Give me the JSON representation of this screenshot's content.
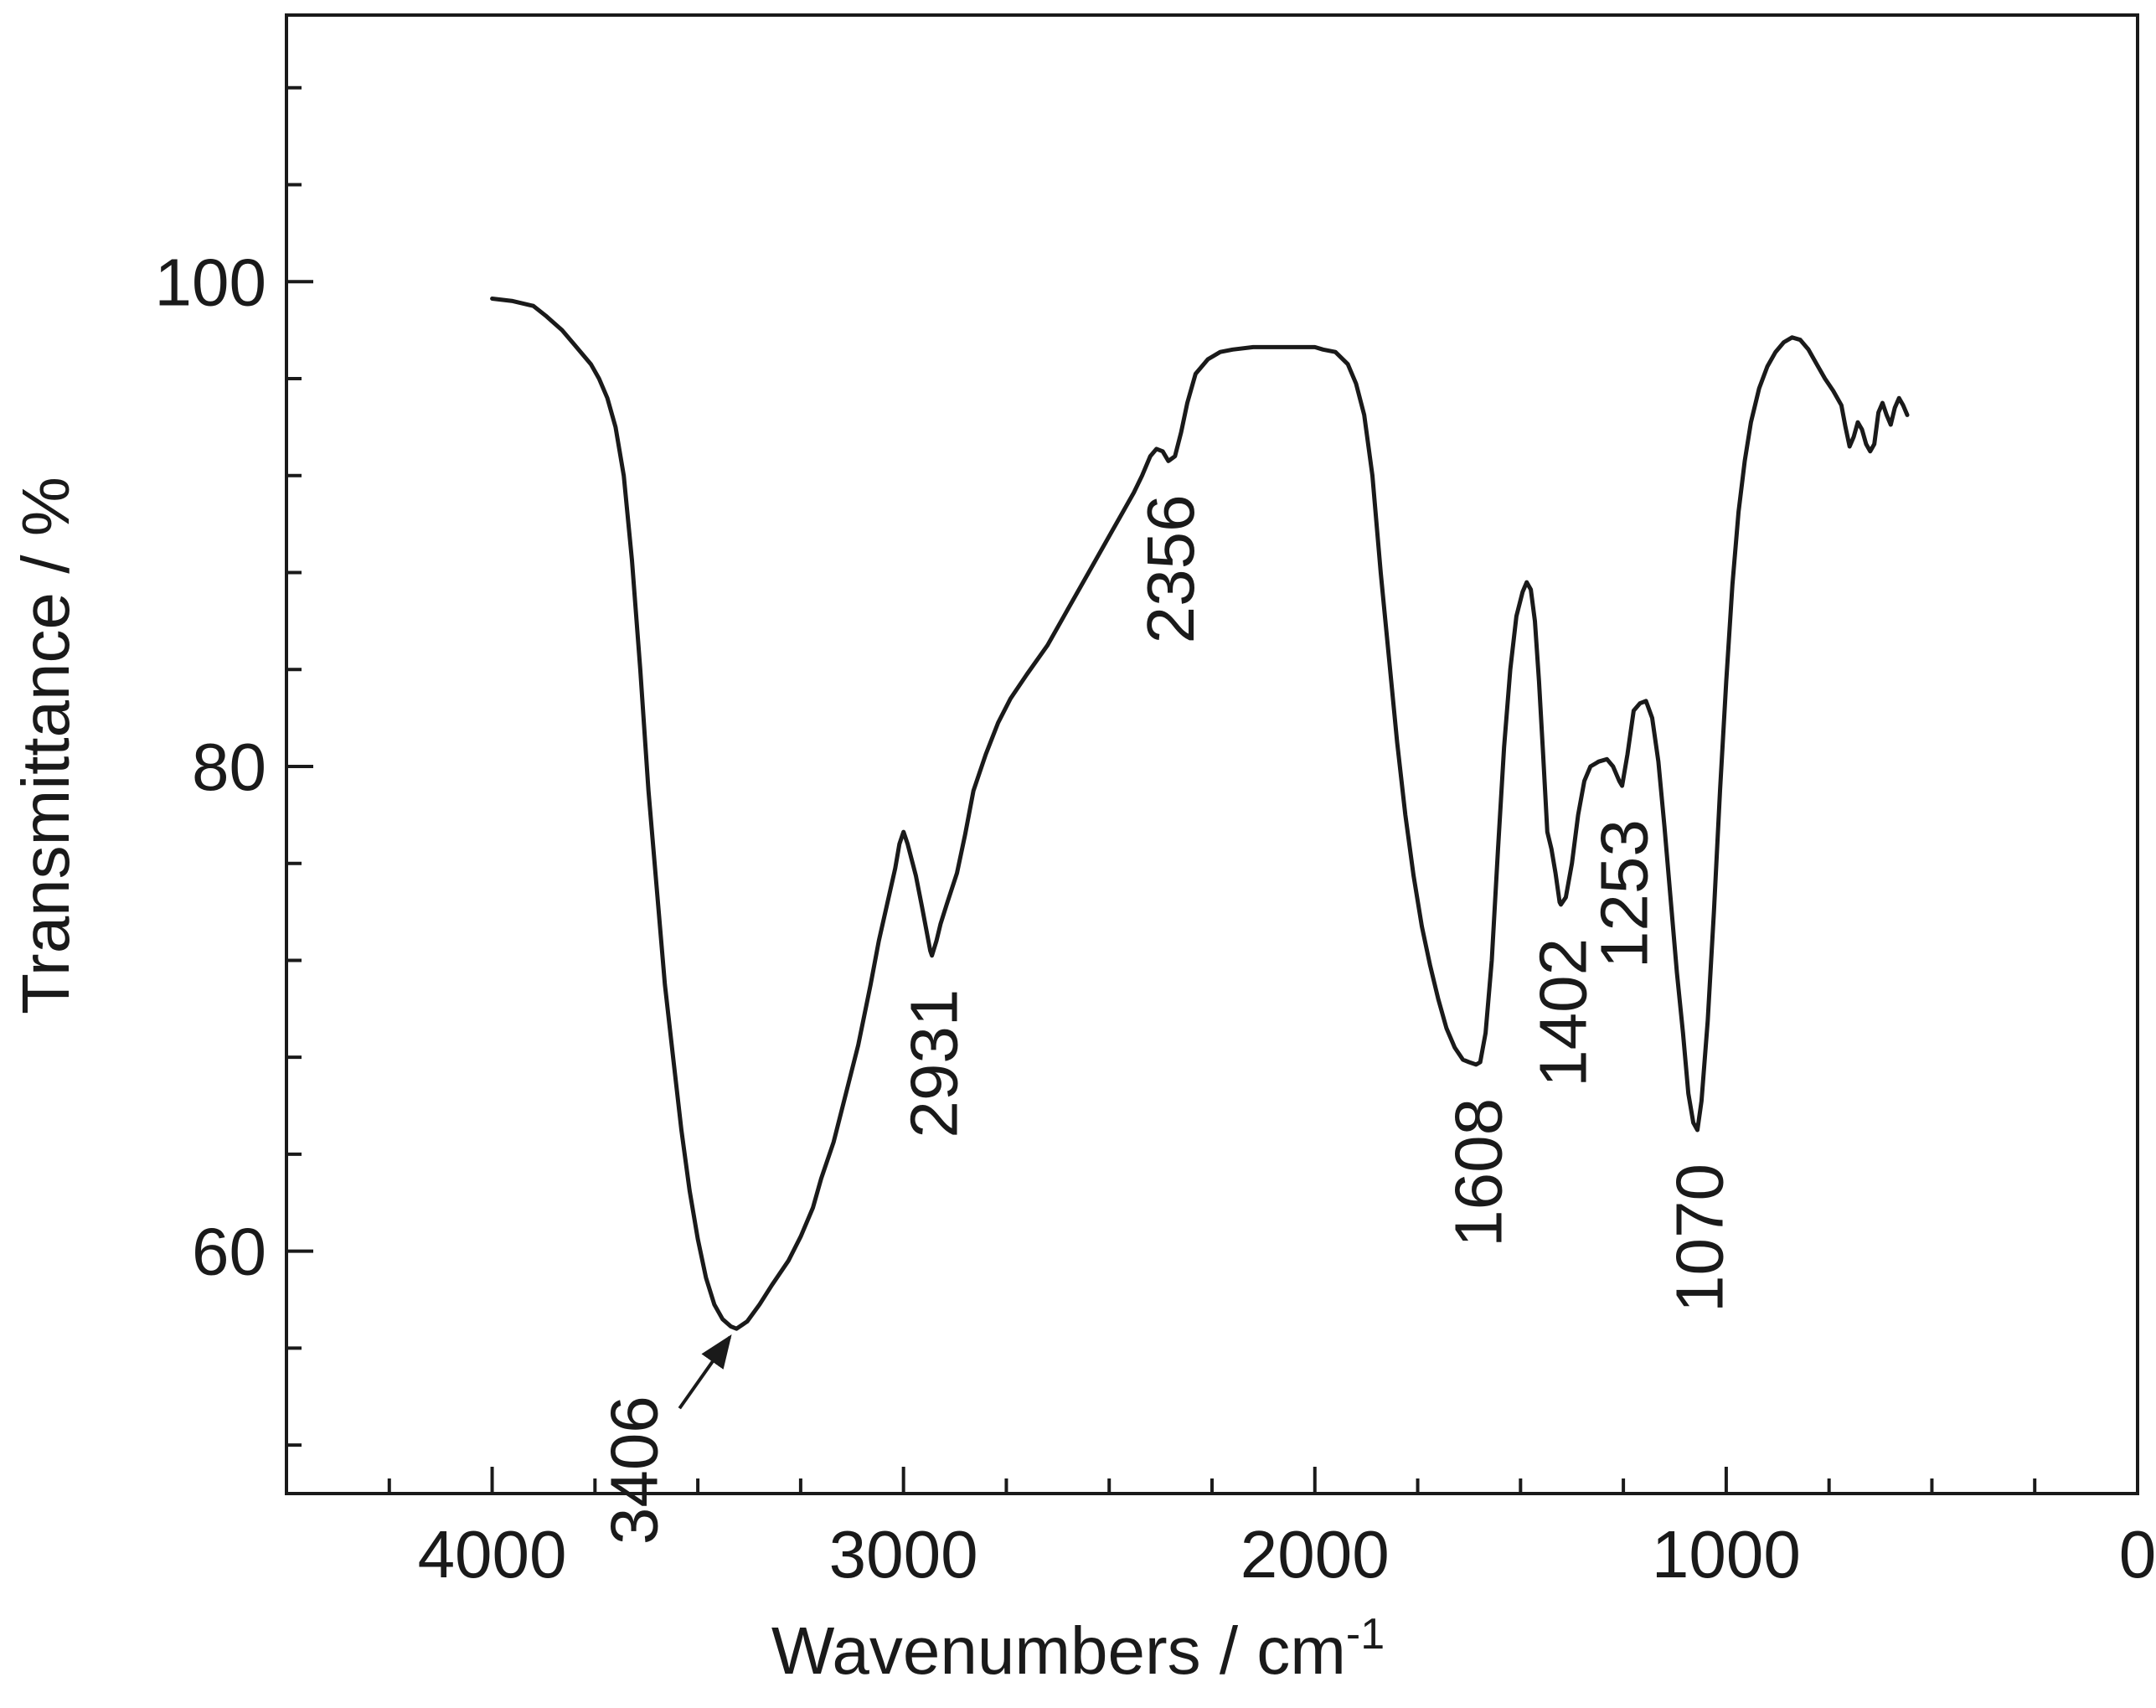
{
  "chart_data": {
    "type": "line",
    "title": "",
    "xlabel": "Wavenumbers / cm",
    "xlabel_sup": "-1",
    "ylabel": "Transmittance / %",
    "xlim": [
      4500,
      0
    ],
    "ylim": [
      50,
      111
    ],
    "x_reversed": true,
    "grid": false,
    "legend": "none",
    "line_color": "#1a1a1a",
    "x_ticks": [
      {
        "value": 4000,
        "label": "4000"
      },
      {
        "value": 3000,
        "label": "3000"
      },
      {
        "value": 2000,
        "label": "2000"
      },
      {
        "value": 1000,
        "label": "1000"
      },
      {
        "value": 0,
        "label": "0"
      }
    ],
    "y_ticks": [
      {
        "value": 60,
        "label": "60"
      },
      {
        "value": 80,
        "label": "80"
      },
      {
        "value": 100,
        "label": "100"
      }
    ],
    "series": [
      {
        "points": [
          [
            4000,
            99.3
          ],
          [
            3950,
            99.2
          ],
          [
            3900,
            99.0
          ],
          [
            3870,
            98.6
          ],
          [
            3830,
            98.0
          ],
          [
            3800,
            97.4
          ],
          [
            3780,
            97.0
          ],
          [
            3760,
            96.6
          ],
          [
            3740,
            96.0
          ],
          [
            3720,
            95.2
          ],
          [
            3700,
            94.0
          ],
          [
            3680,
            92.0
          ],
          [
            3660,
            88.5
          ],
          [
            3640,
            84.0
          ],
          [
            3620,
            79.0
          ],
          [
            3600,
            75.0
          ],
          [
            3580,
            71.0
          ],
          [
            3560,
            68.0
          ],
          [
            3540,
            65.0
          ],
          [
            3520,
            62.5
          ],
          [
            3500,
            60.5
          ],
          [
            3480,
            58.9
          ],
          [
            3460,
            57.8
          ],
          [
            3440,
            57.2
          ],
          [
            3420,
            56.9
          ],
          [
            3406,
            56.8
          ],
          [
            3380,
            57.1
          ],
          [
            3350,
            57.8
          ],
          [
            3320,
            58.6
          ],
          [
            3280,
            59.6
          ],
          [
            3250,
            60.6
          ],
          [
            3220,
            61.8
          ],
          [
            3200,
            63.0
          ],
          [
            3170,
            64.5
          ],
          [
            3140,
            66.5
          ],
          [
            3110,
            68.5
          ],
          [
            3080,
            71.0
          ],
          [
            3060,
            72.8
          ],
          [
            3040,
            74.3
          ],
          [
            3020,
            75.8
          ],
          [
            3010,
            76.8
          ],
          [
            3000,
            77.3
          ],
          [
            2990,
            76.8
          ],
          [
            2970,
            75.5
          ],
          [
            2955,
            74.2
          ],
          [
            2945,
            73.3
          ],
          [
            2935,
            72.4
          ],
          [
            2931,
            72.2
          ],
          [
            2920,
            72.8
          ],
          [
            2910,
            73.5
          ],
          [
            2895,
            74.3
          ],
          [
            2870,
            75.6
          ],
          [
            2850,
            77.2
          ],
          [
            2830,
            79.0
          ],
          [
            2800,
            80.5
          ],
          [
            2770,
            81.8
          ],
          [
            2740,
            82.8
          ],
          [
            2700,
            83.8
          ],
          [
            2650,
            85.0
          ],
          [
            2600,
            86.5
          ],
          [
            2550,
            88.0
          ],
          [
            2500,
            89.5
          ],
          [
            2470,
            90.4
          ],
          [
            2440,
            91.3
          ],
          [
            2420,
            92.0
          ],
          [
            2400,
            92.8
          ],
          [
            2385,
            93.1
          ],
          [
            2370,
            93.0
          ],
          [
            2356,
            92.6
          ],
          [
            2340,
            92.8
          ],
          [
            2325,
            93.8
          ],
          [
            2310,
            95.0
          ],
          [
            2290,
            96.2
          ],
          [
            2260,
            96.8
          ],
          [
            2230,
            97.1
          ],
          [
            2200,
            97.2
          ],
          [
            2150,
            97.3
          ],
          [
            2100,
            97.3
          ],
          [
            2050,
            97.3
          ],
          [
            2000,
            97.3
          ],
          [
            1980,
            97.2
          ],
          [
            1950,
            97.1
          ],
          [
            1920,
            96.6
          ],
          [
            1900,
            95.8
          ],
          [
            1880,
            94.5
          ],
          [
            1860,
            92.0
          ],
          [
            1840,
            88.0
          ],
          [
            1820,
            84.5
          ],
          [
            1800,
            81.0
          ],
          [
            1780,
            78.0
          ],
          [
            1760,
            75.5
          ],
          [
            1740,
            73.4
          ],
          [
            1720,
            71.8
          ],
          [
            1700,
            70.4
          ],
          [
            1680,
            69.2
          ],
          [
            1660,
            68.4
          ],
          [
            1640,
            67.9
          ],
          [
            1625,
            67.8
          ],
          [
            1608,
            67.7
          ],
          [
            1598,
            67.8
          ],
          [
            1585,
            69.0
          ],
          [
            1570,
            72.0
          ],
          [
            1555,
            76.5
          ],
          [
            1540,
            80.8
          ],
          [
            1525,
            84.0
          ],
          [
            1510,
            86.2
          ],
          [
            1495,
            87.2
          ],
          [
            1485,
            87.6
          ],
          [
            1475,
            87.3
          ],
          [
            1465,
            86.0
          ],
          [
            1455,
            83.5
          ],
          [
            1445,
            80.5
          ],
          [
            1435,
            77.3
          ],
          [
            1425,
            76.6
          ],
          [
            1415,
            75.6
          ],
          [
            1405,
            74.4
          ],
          [
            1402,
            74.3
          ],
          [
            1390,
            74.6
          ],
          [
            1375,
            76.0
          ],
          [
            1360,
            78.0
          ],
          [
            1345,
            79.4
          ],
          [
            1330,
            80.0
          ],
          [
            1310,
            80.2
          ],
          [
            1290,
            80.3
          ],
          [
            1275,
            80.0
          ],
          [
            1260,
            79.4
          ],
          [
            1253,
            79.2
          ],
          [
            1240,
            80.5
          ],
          [
            1225,
            82.3
          ],
          [
            1210,
            82.6
          ],
          [
            1195,
            82.7
          ],
          [
            1180,
            82.0
          ],
          [
            1165,
            80.2
          ],
          [
            1150,
            77.5
          ],
          [
            1135,
            74.5
          ],
          [
            1120,
            71.5
          ],
          [
            1105,
            69.0
          ],
          [
            1092,
            66.5
          ],
          [
            1080,
            65.3
          ],
          [
            1070,
            65.0
          ],
          [
            1060,
            66.2
          ],
          [
            1045,
            69.5
          ],
          [
            1030,
            74.0
          ],
          [
            1015,
            79.0
          ],
          [
            1000,
            83.5
          ],
          [
            985,
            87.5
          ],
          [
            970,
            90.5
          ],
          [
            955,
            92.6
          ],
          [
            940,
            94.2
          ],
          [
            920,
            95.6
          ],
          [
            900,
            96.5
          ],
          [
            880,
            97.1
          ],
          [
            860,
            97.5
          ],
          [
            840,
            97.7
          ],
          [
            820,
            97.6
          ],
          [
            800,
            97.2
          ],
          [
            780,
            96.6
          ],
          [
            760,
            96.0
          ],
          [
            740,
            95.5
          ],
          [
            720,
            94.9
          ],
          [
            710,
            94.0
          ],
          [
            700,
            93.2
          ],
          [
            690,
            93.6
          ],
          [
            680,
            94.2
          ],
          [
            670,
            93.9
          ],
          [
            660,
            93.3
          ],
          [
            650,
            93.0
          ],
          [
            640,
            93.3
          ],
          [
            630,
            94.6
          ],
          [
            620,
            95.0
          ],
          [
            610,
            94.5
          ],
          [
            600,
            94.1
          ],
          [
            590,
            94.8
          ],
          [
            580,
            95.2
          ],
          [
            570,
            94.9
          ],
          [
            560,
            94.5
          ]
        ]
      }
    ],
    "annotations": [
      {
        "text": "3406",
        "x": 3406,
        "y": 56.8,
        "arrow": true
      },
      {
        "text": "2931",
        "x": 2931,
        "y": 72.2,
        "arrow": false
      },
      {
        "text": "2356",
        "x": 2356,
        "y": 92.6,
        "arrow": false
      },
      {
        "text": "1608",
        "x": 1608,
        "y": 67.7,
        "arrow": false
      },
      {
        "text": "1402",
        "x": 1402,
        "y": 74.3,
        "arrow": false
      },
      {
        "text": "1253",
        "x": 1253,
        "y": 79.2,
        "arrow": false
      },
      {
        "text": "1070",
        "x": 1070,
        "y": 65.0,
        "arrow": false
      }
    ]
  }
}
